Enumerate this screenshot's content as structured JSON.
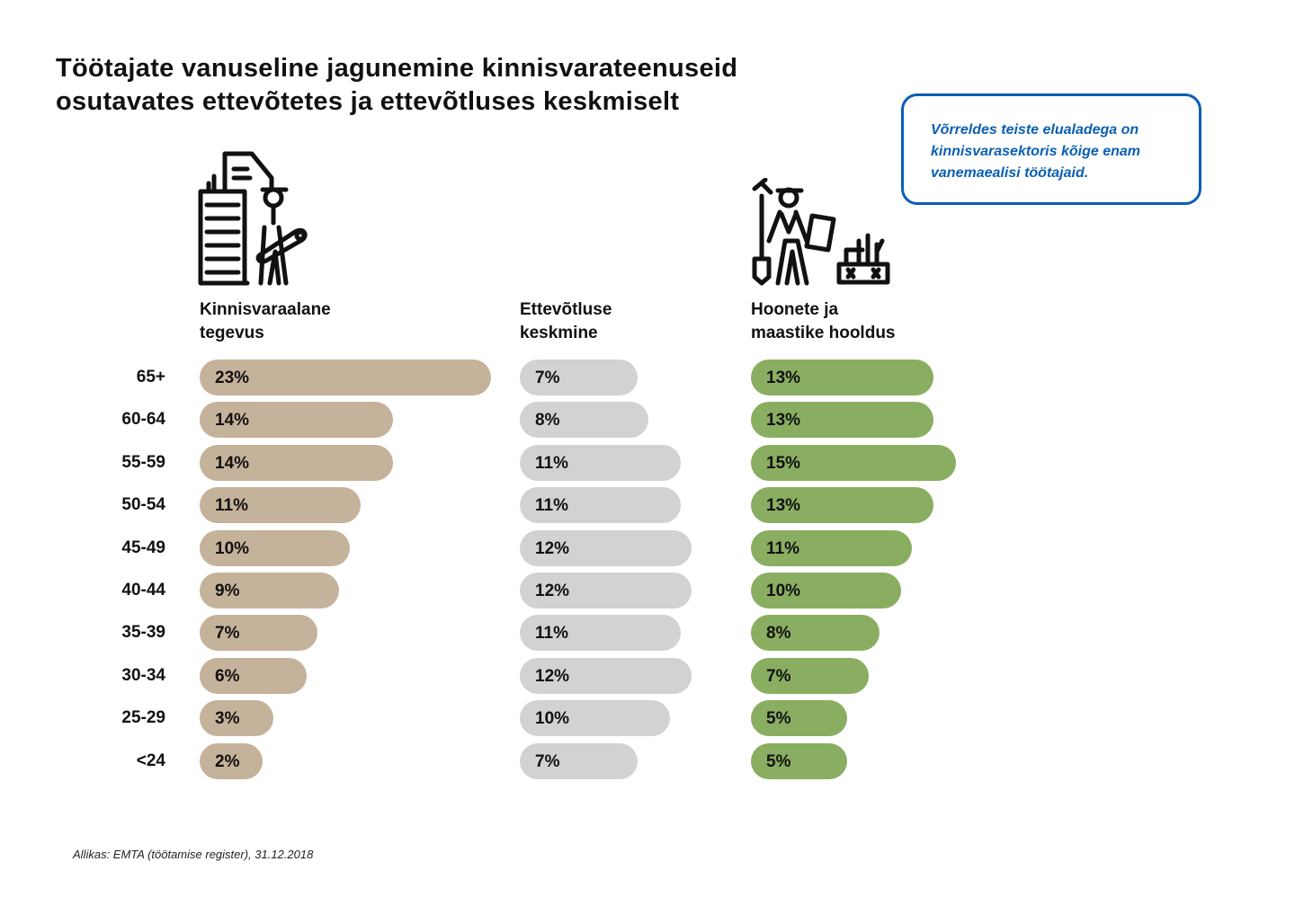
{
  "chart_data": {
    "type": "bar",
    "orientation": "horizontal",
    "title": "Töötajate vanuseline jagunemine kinnisvarateenuseid osutavates ettevõtetes ja ettevõtluses keskmiselt",
    "title_lines": [
      "Töötajate vanuseline jagunemine kinnisvarateenuseid",
      "osutavates ettevõtetes ja ettevõtluses keskmiselt"
    ],
    "categories": [
      "65+",
      "60-64",
      "55-59",
      "50-54",
      "45-49",
      "40-44",
      "35-39",
      "30-34",
      "25-29",
      "<24"
    ],
    "unit": "%",
    "series": [
      {
        "name": "Kinnisvaraalane tegevus",
        "name_lines": [
          "Kinnisvaraalane",
          "tegevus"
        ],
        "color": "#c5b29a",
        "icon": "real-estate-agent-icon",
        "values": [
          23,
          14,
          14,
          11,
          10,
          9,
          7,
          6,
          3,
          2
        ]
      },
      {
        "name": "Ettevõtluse keskmine",
        "name_lines": [
          "Ettevõtluse",
          "keskmine"
        ],
        "color": "#d1d2d2",
        "icon": "",
        "values": [
          7,
          8,
          11,
          11,
          12,
          12,
          11,
          12,
          10,
          7
        ]
      },
      {
        "name": "Hoonete ja maastike hooldus",
        "name_lines": [
          "Hoonete ja",
          "maastike hooldus"
        ],
        "color": "#8aae61",
        "icon": "gardener-icon",
        "values": [
          13,
          13,
          15,
          13,
          11,
          10,
          8,
          7,
          5,
          5
        ]
      }
    ],
    "annotation": "Võrreldes teiste elualadega on kinnisvarasektoris kõige enam vanemaealisi töötajaid.",
    "annotation_lines": [
      "Võrreldes teiste elualadega on",
      "kinnisvarasektoris kõige enam",
      "vanemaealisi töötajaid."
    ],
    "source": "Allikas: EMTA (töötamise register), 31.12.2018",
    "accent_color": "#0a5fb3"
  }
}
